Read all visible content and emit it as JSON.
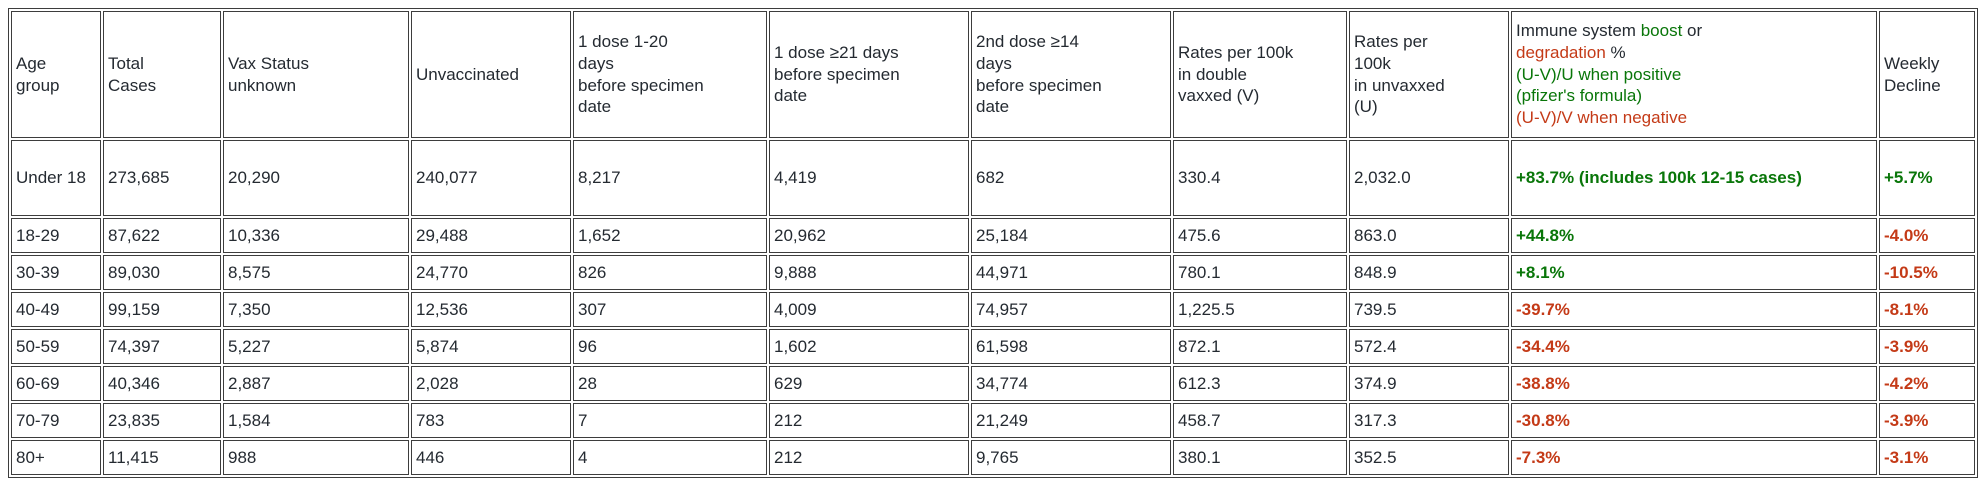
{
  "colors": {
    "green": "#097609",
    "red": "#c43a17",
    "text": "#242a31",
    "border": "#3d3d3d",
    "background": "#ffffff"
  },
  "table": {
    "headers": [
      {
        "key": "age",
        "label": "Age\ngroup"
      },
      {
        "key": "total",
        "label": "Total\nCases"
      },
      {
        "key": "unknown",
        "label": "Vax Status\nunknown"
      },
      {
        "key": "unvaccinated",
        "label": "Unvaccinated"
      },
      {
        "key": "dose1_1_20",
        "label": "1 dose 1-20\ndays\nbefore specimen\ndate"
      },
      {
        "key": "dose1_21",
        "label": "1 dose ≥21 days\n before specimen\ndate"
      },
      {
        "key": "dose2_14",
        "label": "2nd dose ≥14\ndays\nbefore specimen\ndate"
      },
      {
        "key": "rate_v",
        "label": "Rates per 100k\nin double\nvaxxed (V)"
      },
      {
        "key": "rate_u",
        "label": "Rates per\n100k\n in unvaxxed\n(U)"
      },
      {
        "key": "immune",
        "label": ""
      },
      {
        "key": "weekly",
        "label": "Weekly\nDecline"
      }
    ],
    "immune_header_lines": [
      [
        {
          "text": "Immune system ",
          "color": "text"
        },
        {
          "text": "boost",
          "color": "green"
        },
        {
          "text": " or",
          "color": "text"
        }
      ],
      [
        {
          "text": "degradation",
          "color": "red"
        },
        {
          "text": " %",
          "color": "text"
        }
      ],
      [
        {
          "text": "(U-V)/U when positive",
          "color": "green"
        }
      ],
      [
        {
          "text": "(pfizer's formula)",
          "color": "green"
        }
      ],
      [
        {
          "text": "(U-V)/V when negative",
          "color": "red"
        }
      ]
    ],
    "rows": [
      {
        "age": "Under 18",
        "total": "273,685",
        "unknown": "20,290",
        "unvaccinated": "240,077",
        "dose1_1_20": "8,217",
        "dose1_21": "4,419",
        "dose2_14": "682",
        "rate_v": "330.4",
        "rate_u": "2,032.0",
        "immune": "+83.7% (includes 100k 12-15 cases)",
        "immune_color": "green",
        "weekly": "+5.7%",
        "weekly_color": "green"
      },
      {
        "age": "18-29",
        "total": "87,622",
        "unknown": "10,336",
        "unvaccinated": "29,488",
        "dose1_1_20": "1,652",
        "dose1_21": "20,962",
        "dose2_14": "25,184",
        "rate_v": "475.6",
        "rate_u": "863.0",
        "immune": "+44.8%",
        "immune_color": "green",
        "weekly": "-4.0%",
        "weekly_color": "red"
      },
      {
        "age": "30-39",
        "total": "89,030",
        "unknown": "8,575",
        "unvaccinated": "24,770",
        "dose1_1_20": "826",
        "dose1_21": "9,888",
        "dose2_14": "44,971",
        "rate_v": "780.1",
        "rate_u": "848.9",
        "immune": "+8.1%",
        "immune_color": "green",
        "weekly": "-10.5%",
        "weekly_color": "red"
      },
      {
        "age": "40-49",
        "total": "99,159",
        "unknown": "7,350",
        "unvaccinated": "12,536",
        "dose1_1_20": "307",
        "dose1_21": "4,009",
        "dose2_14": "74,957",
        "rate_v": "1,225.5",
        "rate_u": "739.5",
        "immune": "-39.7%",
        "immune_color": "red",
        "weekly": "-8.1%",
        "weekly_color": "red"
      },
      {
        "age": "50-59",
        "total": "74,397",
        "unknown": "5,227",
        "unvaccinated": "5,874",
        "dose1_1_20": "96",
        "dose1_21": "1,602",
        "dose2_14": "61,598",
        "rate_v": "872.1",
        "rate_u": "572.4",
        "immune": "-34.4%",
        "immune_color": "red",
        "weekly": "-3.9%",
        "weekly_color": "red"
      },
      {
        "age": "60-69",
        "total": "40,346",
        "unknown": "2,887",
        "unvaccinated": "2,028",
        "dose1_1_20": "28",
        "dose1_21": "629",
        "dose2_14": "34,774",
        "rate_v": "612.3",
        "rate_u": "374.9",
        "immune": "-38.8%",
        "immune_color": "red",
        "weekly": "-4.2%",
        "weekly_color": "red"
      },
      {
        "age": "70-79",
        "total": "23,835",
        "unknown": "1,584",
        "unvaccinated": "783",
        "dose1_1_20": "7",
        "dose1_21": "212",
        "dose2_14": "21,249",
        "rate_v": "458.7",
        "rate_u": "317.3",
        "immune": "-30.8%",
        "immune_color": "red",
        "weekly": "-3.9%",
        "weekly_color": "red"
      },
      {
        "age": "80+",
        "total": "11,415",
        "unknown": "988",
        "unvaccinated": "446",
        "dose1_1_20": "4",
        "dose1_21": "212",
        "dose2_14": "9,765",
        "rate_v": "380.1",
        "rate_u": "352.5",
        "immune": "-7.3%",
        "immune_color": "red",
        "weekly": "-3.1%",
        "weekly_color": "red"
      }
    ]
  },
  "chart_data": {
    "type": "table",
    "columns": [
      "Age group",
      "Total Cases",
      "Vax Status unknown",
      "Unvaccinated",
      "1 dose 1-20 days before specimen date",
      "1 dose ≥21 days before specimen date",
      "2nd dose ≥14 days before specimen date",
      "Rates per 100k in double vaxxed (V)",
      "Rates per 100k in unvaxxed (U)",
      "Immune system boost or degradation % (U-V)/U when positive (pfizer's formula) (U-V)/V when negative",
      "Weekly Decline"
    ],
    "rows": [
      [
        "Under 18",
        273685,
        20290,
        240077,
        8217,
        4419,
        682,
        330.4,
        2032.0,
        "+83.7% (includes 100k 12-15 cases)",
        "+5.7%"
      ],
      [
        "18-29",
        87622,
        10336,
        29488,
        1652,
        20962,
        25184,
        475.6,
        863.0,
        "+44.8%",
        "-4.0%"
      ],
      [
        "30-39",
        89030,
        8575,
        24770,
        826,
        9888,
        44971,
        780.1,
        848.9,
        "+8.1%",
        "-10.5%"
      ],
      [
        "40-49",
        99159,
        7350,
        12536,
        307,
        4009,
        74957,
        1225.5,
        739.5,
        "-39.7%",
        "-8.1%"
      ],
      [
        "50-59",
        74397,
        5227,
        5874,
        96,
        1602,
        61598,
        872.1,
        572.4,
        "-34.4%",
        "-3.9%"
      ],
      [
        "60-69",
        40346,
        2887,
        2028,
        28,
        629,
        34774,
        612.3,
        374.9,
        "-38.8%",
        "-4.2%"
      ],
      [
        "70-79",
        23835,
        1584,
        783,
        7,
        212,
        21249,
        458.7,
        317.3,
        "-30.8%",
        "-3.9%"
      ],
      [
        "80+",
        11415,
        988,
        446,
        4,
        212,
        9765,
        380.1,
        352.5,
        "-7.3%",
        "-3.1%"
      ]
    ]
  }
}
